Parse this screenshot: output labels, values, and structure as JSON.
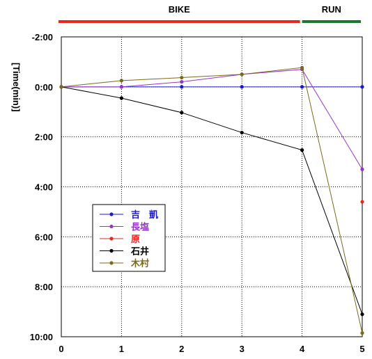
{
  "chart_data": {
    "type": "line",
    "ylabel": "[Time(min)]",
    "x_ticks": [
      "0",
      "1",
      "2",
      "3",
      "4",
      "5"
    ],
    "y_tick_labels": [
      "-2:00",
      "0:00",
      "2:00",
      "4:00",
      "6:00",
      "8:00",
      "10:00"
    ],
    "y_tick_values": [
      -2,
      0,
      2,
      4,
      6,
      8,
      10
    ],
    "xlim": [
      0,
      5
    ],
    "ylim": [
      -2,
      10
    ],
    "y_inverted": true,
    "grid": true,
    "grid_style": "dotted",
    "legend_position": "lower-left",
    "segments": [
      {
        "label": "BIKE",
        "from": 0,
        "to": 4,
        "color": "#e8261c"
      },
      {
        "label": "RUN",
        "from": 4,
        "to": 5,
        "color": "#1a7a2a"
      }
    ],
    "x": [
      0,
      1,
      2,
      3,
      4,
      5
    ],
    "series": [
      {
        "name": "吉　凱",
        "color": "#1a1ad0",
        "values": [
          0,
          0,
          0,
          0,
          0,
          0
        ]
      },
      {
        "name": "長塩",
        "color": "#9933cc",
        "values": [
          0,
          0,
          -0.2,
          -0.5,
          -0.7,
          3.3
        ]
      },
      {
        "name": "原",
        "color": "#e8261c",
        "values": [
          null,
          null,
          null,
          null,
          null,
          4.6
        ]
      },
      {
        "name": "石井",
        "color": "#000000",
        "values": [
          0,
          0.45,
          1.03,
          1.83,
          2.53,
          9.1
        ]
      },
      {
        "name": "木村",
        "color": "#7a6a1a",
        "values": [
          0,
          -0.25,
          -0.37,
          -0.5,
          -0.77,
          9.85
        ]
      }
    ]
  }
}
